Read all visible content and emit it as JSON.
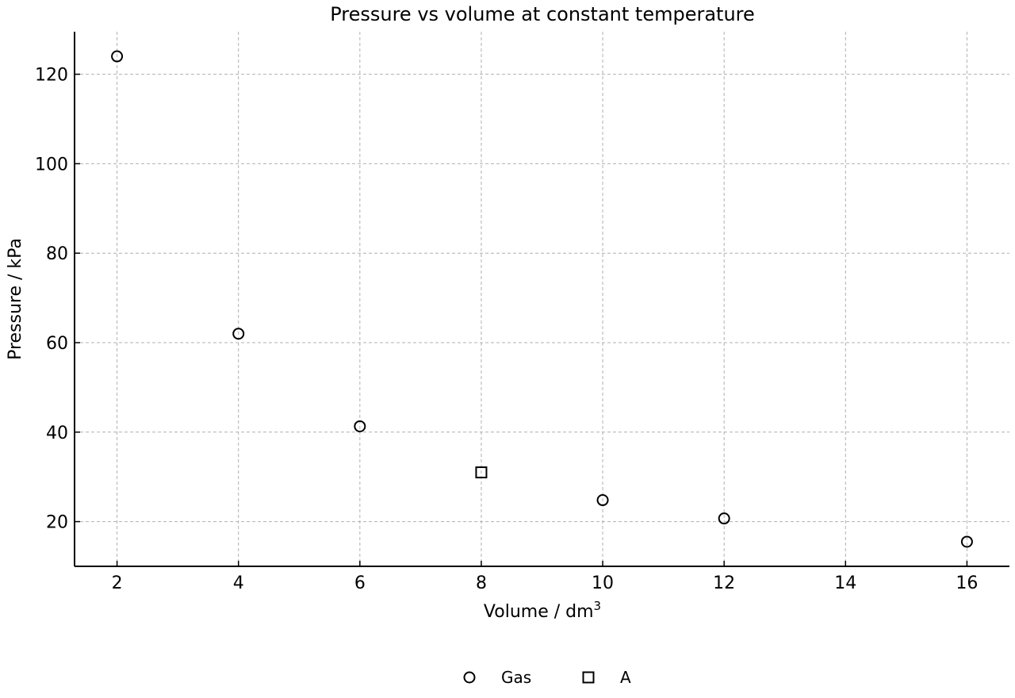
{
  "chart_data": {
    "type": "scatter",
    "title": "Pressure vs volume at constant temperature",
    "xlabel": "Volume / dm",
    "xlabel_sup": "3",
    "ylabel": "Pressure / kPa",
    "xlim": [
      1.3,
      16.7
    ],
    "ylim": [
      10,
      129.5
    ],
    "x_ticks": [
      2,
      4,
      6,
      8,
      10,
      12,
      14,
      16
    ],
    "y_ticks": [
      20,
      40,
      60,
      80,
      100,
      120
    ],
    "grid": true,
    "legend_position": "bottom-center",
    "series": [
      {
        "name": "Gas",
        "marker": "circle",
        "color": "#000000",
        "points": [
          {
            "x": 2,
            "y": 124
          },
          {
            "x": 4,
            "y": 62
          },
          {
            "x": 6,
            "y": 41.3
          },
          {
            "x": 10,
            "y": 24.8
          },
          {
            "x": 12,
            "y": 20.7
          },
          {
            "x": 16,
            "y": 15.5
          }
        ]
      },
      {
        "name": "A",
        "marker": "square",
        "color": "#000000",
        "points": [
          {
            "x": 8,
            "y": 31
          }
        ]
      }
    ]
  }
}
